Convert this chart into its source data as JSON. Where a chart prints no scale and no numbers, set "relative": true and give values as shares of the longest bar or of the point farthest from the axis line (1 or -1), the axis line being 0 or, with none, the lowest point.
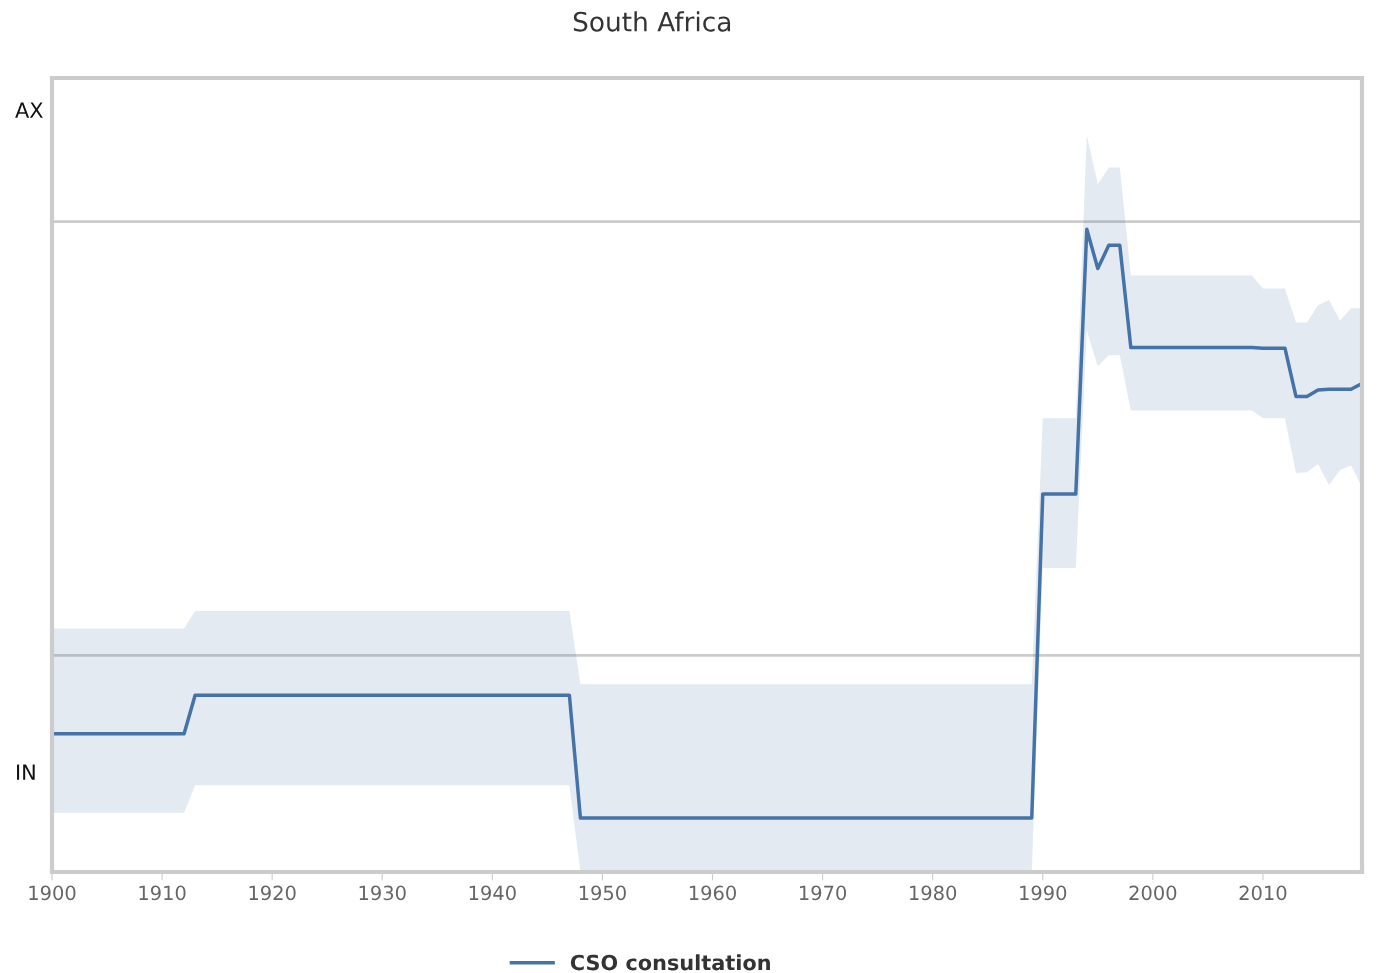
{
  "chart_data": {
    "type": "line",
    "title": "South Africa",
    "relative": true,
    "x": [
      1900,
      1912,
      1913,
      1947,
      1948,
      1989,
      1990,
      1993,
      1994,
      1995,
      1996,
      1997,
      1998,
      2009,
      2010,
      2012,
      2013,
      2014,
      2015,
      2016,
      2017,
      2018,
      2019
    ],
    "series": [
      {
        "name": "CSO consultation",
        "color": "#4572a7",
        "values": [
          0.215,
          0.215,
          0.275,
          0.275,
          0.084,
          0.084,
          0.588,
          0.588,
          1,
          0.939,
          0.975,
          0.975,
          0.816,
          0.816,
          0.815,
          0.815,
          0.74,
          0.74,
          0.75,
          0.751,
          0.751,
          0.751,
          0.76
        ],
        "upper": [
          0.379,
          0.379,
          0.406,
          0.406,
          0.292,
          0.292,
          0.706,
          0.706,
          1.146,
          1.07,
          1.096,
          1.096,
          0.928,
          0.928,
          0.908,
          0.908,
          0.855,
          0.855,
          0.882,
          0.89,
          0.858,
          0.877,
          0.877
        ],
        "lower": [
          0.092,
          0.092,
          0.135,
          0.135,
          0,
          0,
          0.473,
          0.473,
          0.843,
          0.787,
          0.804,
          0.804,
          0.718,
          0.718,
          0.706,
          0.706,
          0.621,
          0.622,
          0.635,
          0.602,
          0.625,
          0.633,
          0.599
        ]
      }
    ],
    "xlim": [
      1900,
      2019
    ],
    "xticks": [
      1900,
      1910,
      1920,
      1930,
      1940,
      1950,
      1960,
      1970,
      1980,
      1990,
      2000,
      2010
    ],
    "annotations": [
      "AX",
      "IN"
    ],
    "ref_lines": [
      {
        "axis": "y",
        "value": 1.012,
        "color": "#cccccc"
      },
      {
        "axis": "y",
        "value": 0.337,
        "color": "#cccccc"
      }
    ],
    "grid": false,
    "legend": "bottom",
    "marker": "none",
    "line_style": "solid"
  }
}
